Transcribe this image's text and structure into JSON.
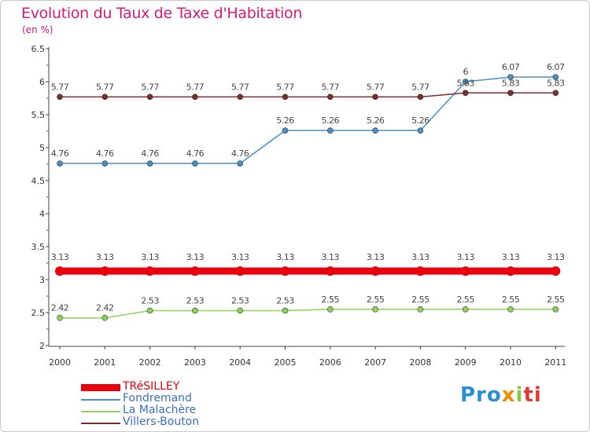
{
  "title": "Evolution du Taux de Taxe d'Habitation",
  "subtitle": "(en %)",
  "logo": [
    "Pro",
    "x",
    "i",
    "ti"
  ],
  "chart_data": {
    "type": "line",
    "title": "Evolution du Taux de Taxe d'Habitation",
    "ylabel": "(en %)",
    "xlabel": "",
    "ylim": [
      2,
      6.5
    ],
    "yticks": [
      2,
      2.5,
      3,
      3.5,
      4,
      4.5,
      5,
      5.5,
      6,
      6.5
    ],
    "grid": false,
    "legend_position": "bottom-left",
    "categories": [
      "2000",
      "2001",
      "2002",
      "2003",
      "2004",
      "2005",
      "2006",
      "2007",
      "2008",
      "2009",
      "2010",
      "2011"
    ],
    "series": [
      {
        "name": "TRéSILLEY",
        "color": "#e8000d",
        "values": [
          3.13,
          3.13,
          3.13,
          3.13,
          3.13,
          3.13,
          3.13,
          3.13,
          3.13,
          3.13,
          3.13,
          3.13
        ],
        "labels": [
          "3.13",
          "3.13",
          "3.13",
          "3.13",
          "3.13",
          "3.13",
          "3.13",
          "3.13",
          "3.13",
          "3.13",
          "3.13",
          "3.13"
        ]
      },
      {
        "name": "Fondremand",
        "color": "#4a8fc4",
        "values": [
          4.76,
          4.76,
          4.76,
          4.76,
          4.76,
          5.26,
          5.26,
          5.26,
          5.26,
          6,
          6.07,
          6.07
        ],
        "labels": [
          "4.76",
          "4.76",
          "4.76",
          "4.76",
          "4.76",
          "5.26",
          "5.26",
          "5.26",
          "5.26",
          "6",
          "6.07",
          "6.07"
        ]
      },
      {
        "name": "La Malachère",
        "color": "#8fd25a",
        "values": [
          2.42,
          2.42,
          2.53,
          2.53,
          2.53,
          2.53,
          2.55,
          2.55,
          2.55,
          2.55,
          2.55,
          2.55
        ],
        "labels": [
          "2.42",
          "2.42",
          "2.53",
          "2.53",
          "2.53",
          "2.53",
          "2.55",
          "2.55",
          "2.55",
          "2.55",
          "2.55",
          "2.55"
        ]
      },
      {
        "name": "Villers-Bouton",
        "color": "#7a2e32",
        "values": [
          5.77,
          5.77,
          5.77,
          5.77,
          5.77,
          5.77,
          5.77,
          5.77,
          5.77,
          5.83,
          5.83,
          5.83
        ],
        "labels": [
          "5.77",
          "5.77",
          "5.77",
          "5.77",
          "5.77",
          "5.77",
          "5.77",
          "5.77",
          "5.77",
          "5.83",
          "5.83",
          "5.83"
        ]
      }
    ]
  }
}
